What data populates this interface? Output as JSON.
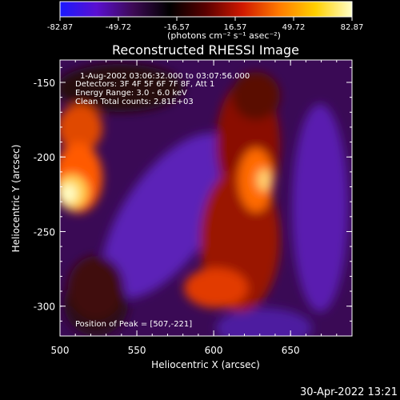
{
  "chart_data": {
    "type": "heatmap",
    "title": "Reconstructed RHESSI Image",
    "xlabel": "Heliocentric X (arcsec)",
    "ylabel": "Heliocentric Y (arcsec)",
    "xlim": [
      500,
      690
    ],
    "ylim": [
      -320,
      -135
    ],
    "x_ticks": [
      500,
      550,
      600,
      650
    ],
    "y_ticks": [
      -150,
      -200,
      -250,
      -300
    ],
    "colorbar": {
      "min": -82.87,
      "max": 82.87,
      "ticks": [
        "-82.87",
        "-49.72",
        "-16.57",
        "16.57",
        "49.72",
        "82.87"
      ],
      "unit_label": "(photons cm⁻² s⁻¹ asec⁻²)",
      "colors": [
        "#1a1aff",
        "#5a0fd0",
        "#3d0a55",
        "#000000",
        "#5a0000",
        "#d01800",
        "#ff7a00",
        "#ffd000",
        "#ffffc8"
      ]
    },
    "annotations": [
      "1-Aug-2002 03:06:32.000 to 03:07:56.000",
      "Detectors: 3F 4F 5F 6F 7F 8F, Att 1",
      "Energy Range: 3.0 - 6.0 keV",
      "Clean    Total counts: 2.81E+03"
    ],
    "peak_label": "Position of Peak = [507,-221]",
    "peak": [
      507,
      -221
    ]
  },
  "footer": {
    "timestamp": "30-Apr-2022 13:21"
  }
}
